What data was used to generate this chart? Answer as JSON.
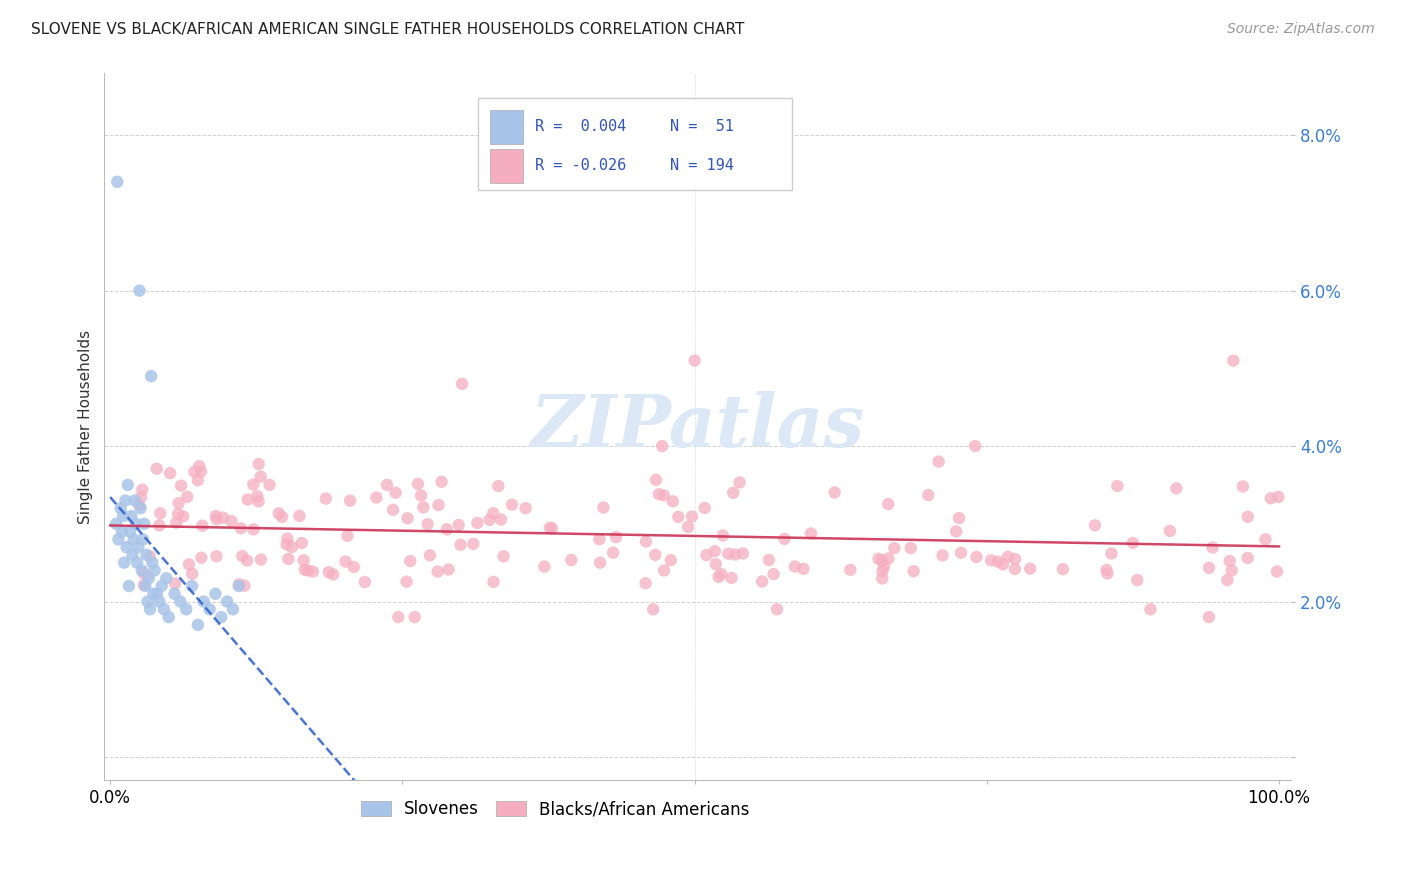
{
  "title": "SLOVENE VS BLACK/AFRICAN AMERICAN SINGLE FATHER HOUSEHOLDS CORRELATION CHART",
  "source": "Source: ZipAtlas.com",
  "ylabel": "Single Father Households",
  "blue_color": "#a8c4e8",
  "pink_color": "#f5aec0",
  "blue_line_color": "#3366cc",
  "pink_line_color": "#cc3355",
  "legend_text_color": "#3355bb",
  "watermark_color": "#dce8f5",
  "ylim": [
    0.0,
    0.088
  ],
  "xlim": [
    0.0,
    1.0
  ],
  "ytick_vals": [
    0.0,
    0.02,
    0.04,
    0.06,
    0.08
  ],
  "ytick_labels": [
    "",
    "2.0%",
    "4.0%",
    "6.0%",
    "8.0%"
  ]
}
